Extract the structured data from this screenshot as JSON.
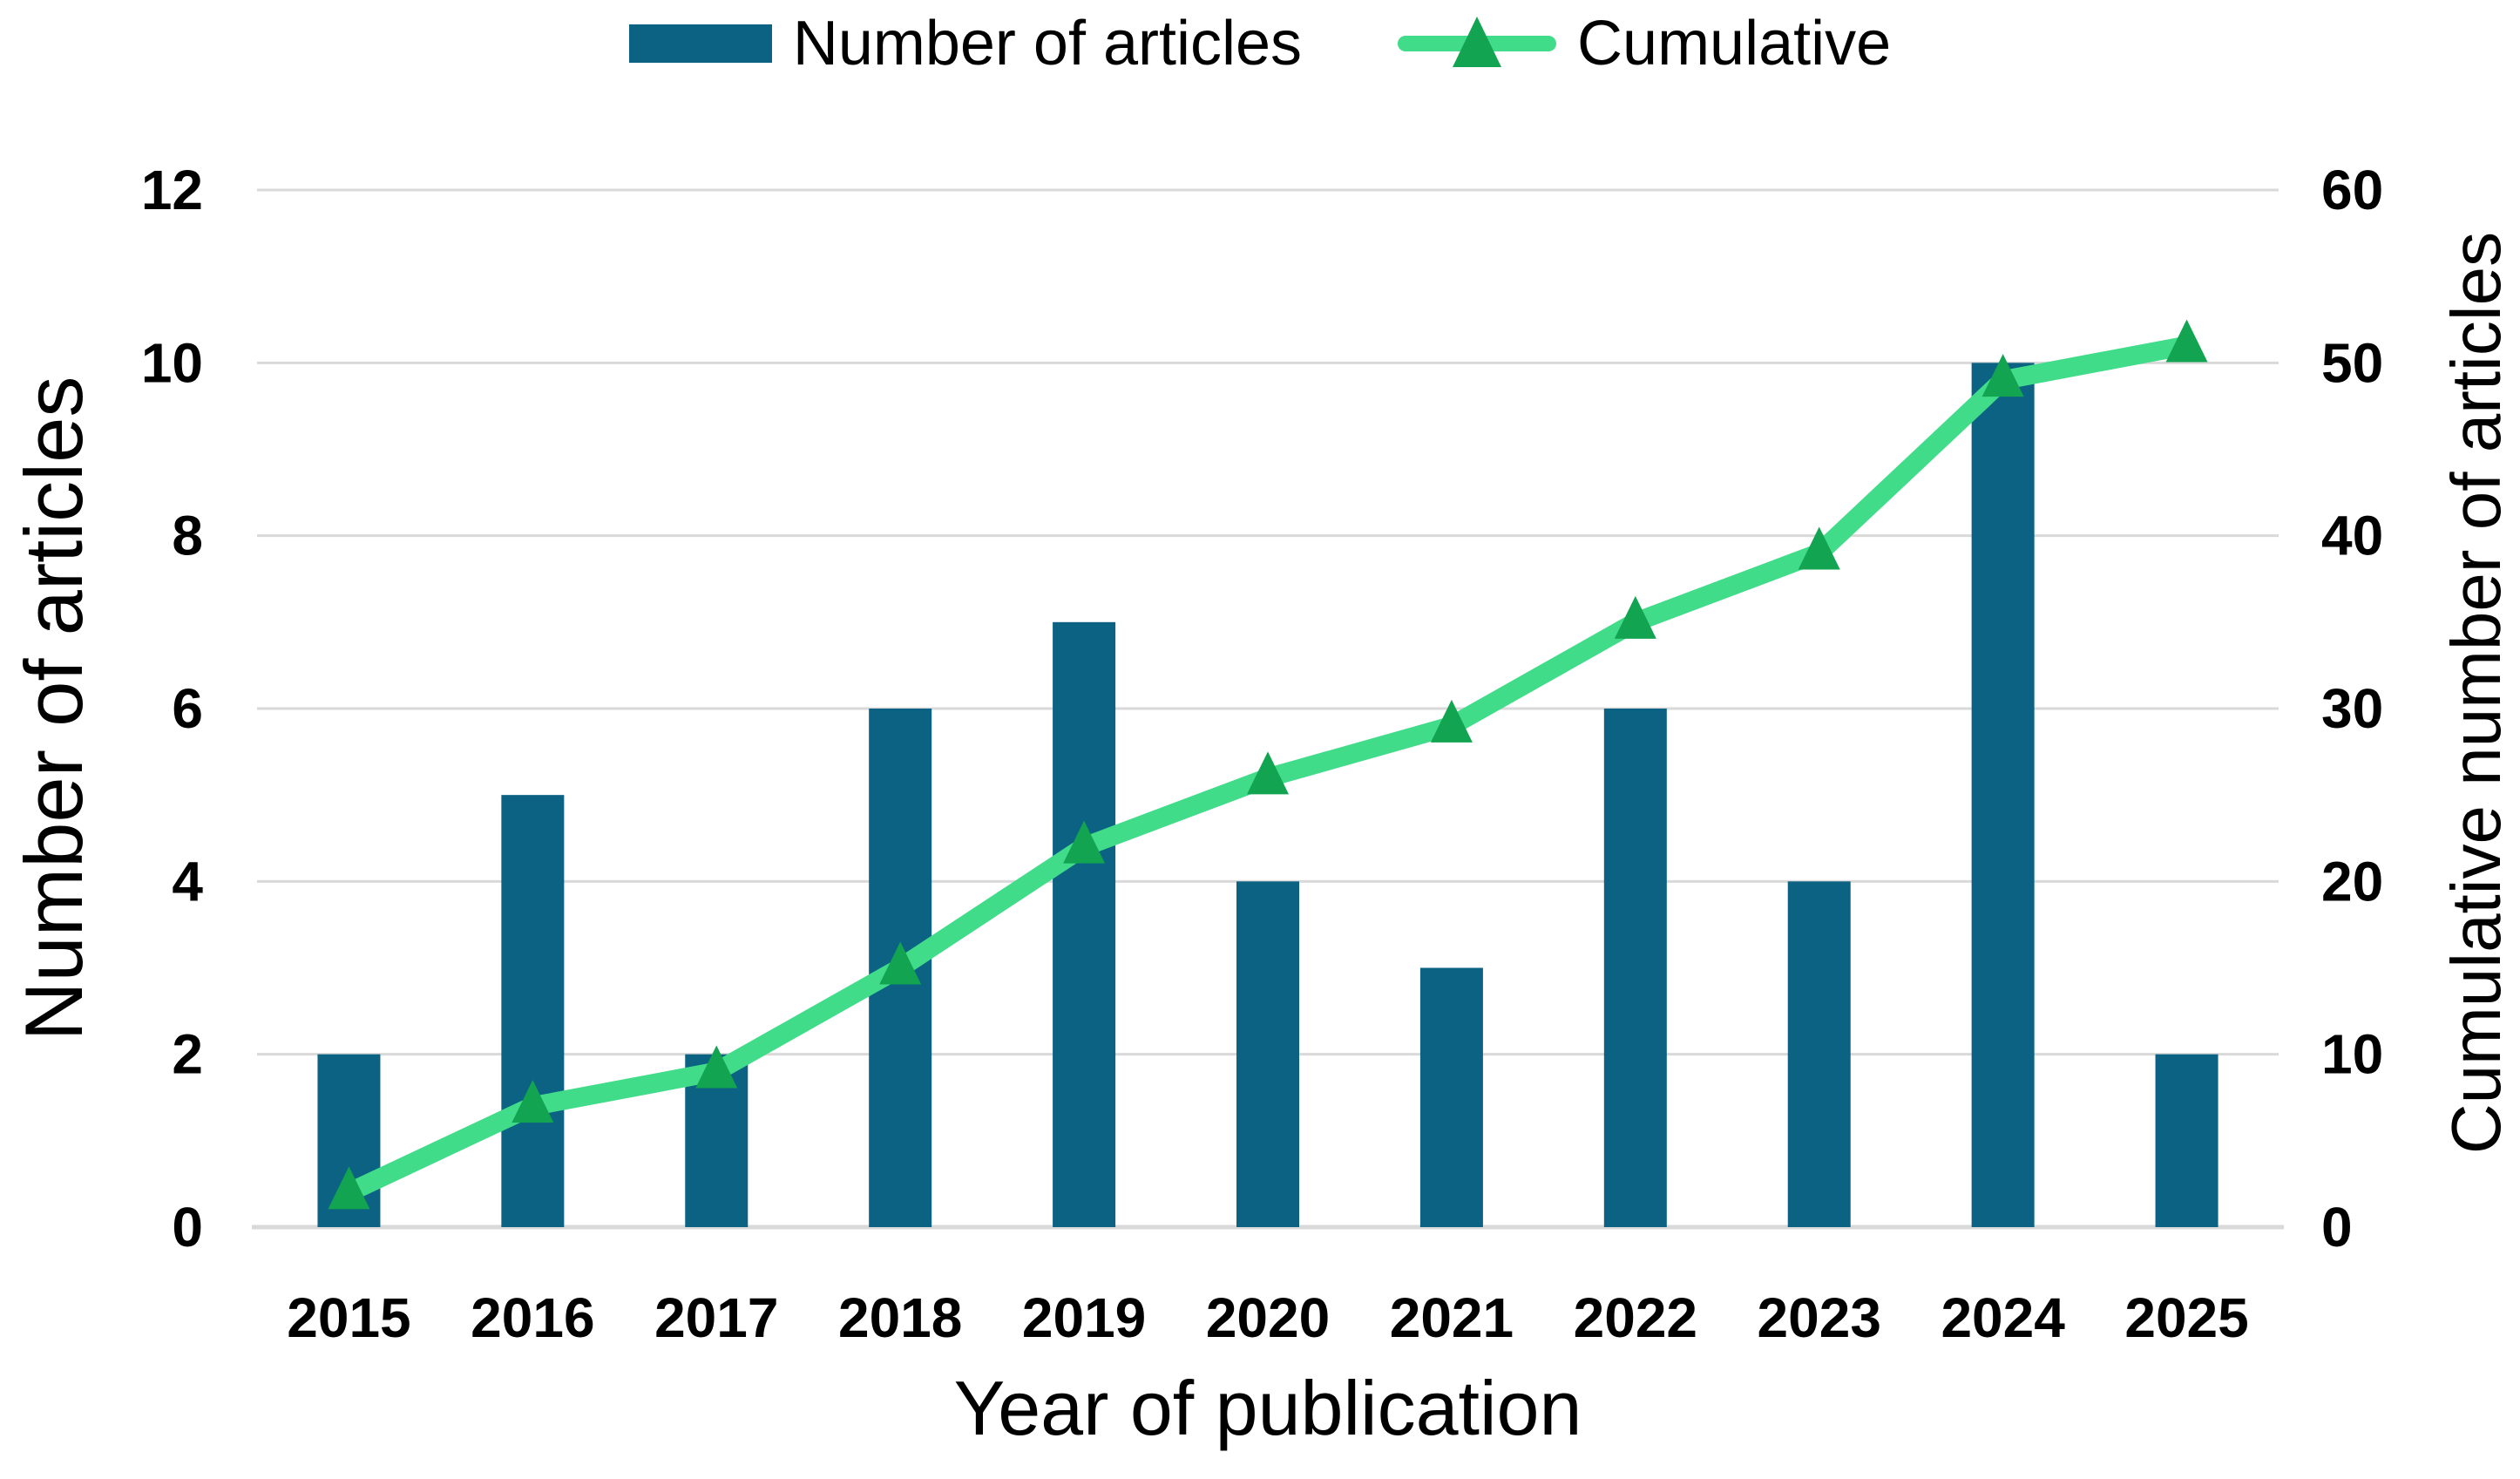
{
  "colors": {
    "bar": "#0b6283",
    "line": "#41dc89",
    "marker": "#12a451",
    "grid": "#d9d9d9",
    "axis_line": "#d9d9d9",
    "text": "#000000"
  },
  "chart_data": {
    "type": "combo",
    "categories": [
      "2015",
      "2016",
      "2017",
      "2018",
      "2019",
      "2020",
      "2021",
      "2022",
      "2023",
      "2024",
      "2025"
    ],
    "series": [
      {
        "name": "Number of articles",
        "type": "bar",
        "axis": "left",
        "values": [
          2,
          5,
          2,
          6,
          7,
          4,
          3,
          6,
          4,
          10,
          2
        ]
      },
      {
        "name": "Cumulative",
        "type": "line",
        "axis": "right",
        "marker": "triangle-up",
        "values": [
          2,
          7,
          9,
          15,
          22,
          26,
          29,
          35,
          39,
          49,
          51
        ]
      }
    ],
    "x_axis": {
      "label": "Year of publication"
    },
    "left_axis": {
      "label": "Number of articles",
      "range": [
        0,
        12
      ],
      "ticks": [
        0,
        2,
        4,
        6,
        8,
        10,
        12
      ]
    },
    "right_axis": {
      "label": "Cumulative number of articles",
      "range": [
        0,
        60
      ],
      "ticks": [
        0,
        10,
        20,
        30,
        40,
        50,
        60
      ]
    },
    "grid": "horizontal",
    "legend_position": "top"
  }
}
